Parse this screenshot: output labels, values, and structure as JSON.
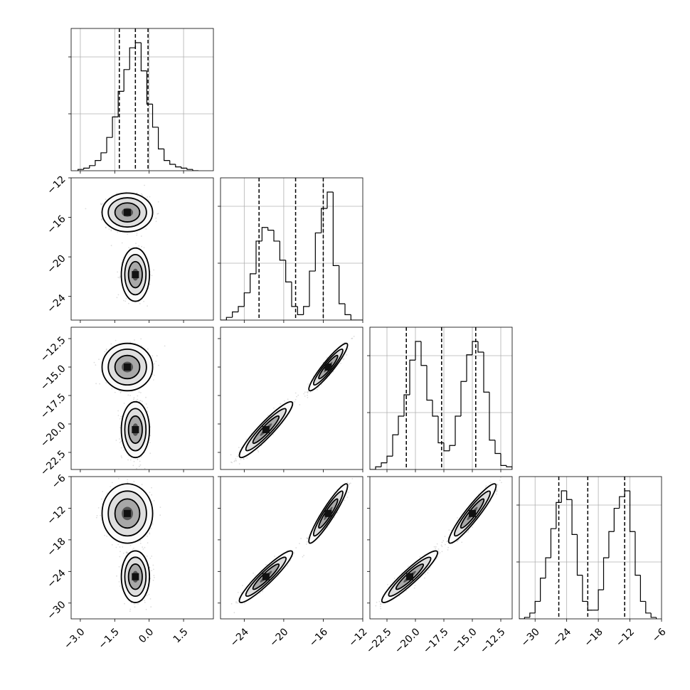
{
  "chart_data": {
    "type": "corner",
    "title": "",
    "grid": true,
    "parameters": [
      {
        "label": "",
        "range": [
          -3.4,
          2.8
        ],
        "ticks": [
          -3.0,
          -1.5,
          0.0,
          1.5
        ],
        "tick_labels": [
          "−3.0",
          "−1.5",
          "0.0",
          "1.5"
        ],
        "quantiles": [
          -1.3,
          -0.6,
          -0.05
        ],
        "histogram": {
          "edges": [
            -3.1,
            -2.85,
            -2.6,
            -2.35,
            -2.1,
            -1.85,
            -1.6,
            -1.35,
            -1.1,
            -0.85,
            -0.6,
            -0.35,
            -0.1,
            0.15,
            0.4,
            0.65,
            0.9,
            1.15,
            1.4,
            1.65,
            1.9,
            2.15
          ],
          "counts": [
            0.01,
            0.02,
            0.04,
            0.08,
            0.14,
            0.26,
            0.42,
            0.62,
            0.79,
            0.96,
            1.0,
            0.78,
            0.52,
            0.34,
            0.17,
            0.08,
            0.05,
            0.03,
            0.02,
            0.01,
            0.0
          ]
        }
      },
      {
        "label": "",
        "range": [
          -26.4,
          -12.0
        ],
        "ticks": [
          -24,
          -20,
          -16,
          -12
        ],
        "tick_labels": [
          "−24",
          "−20",
          "−16",
          "−12"
        ],
        "quantiles": [
          -22.5,
          -18.8,
          -16.0
        ],
        "histogram": {
          "edges": [
            -26.4,
            -25.8,
            -25.2,
            -24.6,
            -24.0,
            -23.4,
            -22.8,
            -22.2,
            -21.6,
            -21.0,
            -20.4,
            -19.8,
            -19.2,
            -18.6,
            -18.0,
            -17.4,
            -16.8,
            -16.2,
            -15.6,
            -15.0,
            -14.4,
            -13.8,
            -13.2,
            -12.6,
            -12.0
          ],
          "counts": [
            0.0,
            0.02,
            0.06,
            0.1,
            0.2,
            0.34,
            0.58,
            0.68,
            0.66,
            0.58,
            0.44,
            0.28,
            0.1,
            0.04,
            0.1,
            0.36,
            0.64,
            0.82,
            0.94,
            0.4,
            0.12,
            0.04,
            0.0,
            0.0
          ]
        }
      },
      {
        "label": "",
        "range": [
          -24.0,
          -11.5
        ],
        "ticks": [
          -22.5,
          -20.0,
          -17.5,
          -15.0,
          -12.5
        ],
        "tick_labels": [
          "−22.5",
          "−20.0",
          "−17.5",
          "−15.0",
          "−12.5"
        ],
        "quantiles": [
          -20.8,
          -17.7,
          -14.7
        ],
        "histogram": {
          "edges": [
            -24.0,
            -23.5,
            -23.0,
            -22.5,
            -22.0,
            -21.5,
            -21.0,
            -20.5,
            -20.0,
            -19.5,
            -19.0,
            -18.5,
            -18.0,
            -17.5,
            -17.0,
            -16.5,
            -16.0,
            -15.5,
            -15.0,
            -14.5,
            -14.0,
            -13.5,
            -13.0,
            -12.5,
            -12.0,
            -11.5
          ],
          "counts": [
            0.0,
            0.02,
            0.05,
            0.1,
            0.26,
            0.4,
            0.56,
            0.82,
            0.96,
            0.78,
            0.52,
            0.4,
            0.2,
            0.14,
            0.18,
            0.4,
            0.66,
            0.86,
            0.96,
            0.88,
            0.58,
            0.22,
            0.12,
            0.03,
            0.02
          ]
        }
      },
      {
        "label": "",
        "range": [
          -33.0,
          -6.0
        ],
        "ticks": [
          -30,
          -24,
          -18,
          -12,
          -6
        ],
        "tick_labels": [
          "−30",
          "−24",
          "−18",
          "−12",
          "−6"
        ],
        "quantiles": [
          -25.5,
          -20.0,
          -13.0
        ],
        "histogram": {
          "edges": [
            -33.0,
            -32.0,
            -31.0,
            -30.0,
            -29.0,
            -28.0,
            -27.0,
            -26.0,
            -25.0,
            -24.0,
            -23.0,
            -22.0,
            -21.0,
            -20.0,
            -19.0,
            -18.0,
            -17.0,
            -16.0,
            -15.0,
            -14.0,
            -13.0,
            -12.0,
            -11.0,
            -10.0,
            -9.0,
            -8.0,
            -7.0
          ],
          "counts": [
            0.0,
            0.01,
            0.04,
            0.12,
            0.28,
            0.42,
            0.62,
            0.8,
            0.88,
            0.82,
            0.58,
            0.3,
            0.12,
            0.06,
            0.06,
            0.2,
            0.42,
            0.6,
            0.76,
            0.84,
            0.88,
            0.6,
            0.3,
            0.12,
            0.04,
            0.01
          ]
        }
      }
    ],
    "modes": [
      {
        "mean": [
          -0.95,
          -15.5,
          -15.0,
          -13.0
        ],
        "sd": [
          0.45,
          0.8,
          0.85,
          2.3
        ]
      },
      {
        "mean": [
          -0.6,
          -21.8,
          -20.5,
          -25.0
        ],
        "sd": [
          0.25,
          1.1,
          1.0,
          2.0
        ]
      }
    ]
  }
}
